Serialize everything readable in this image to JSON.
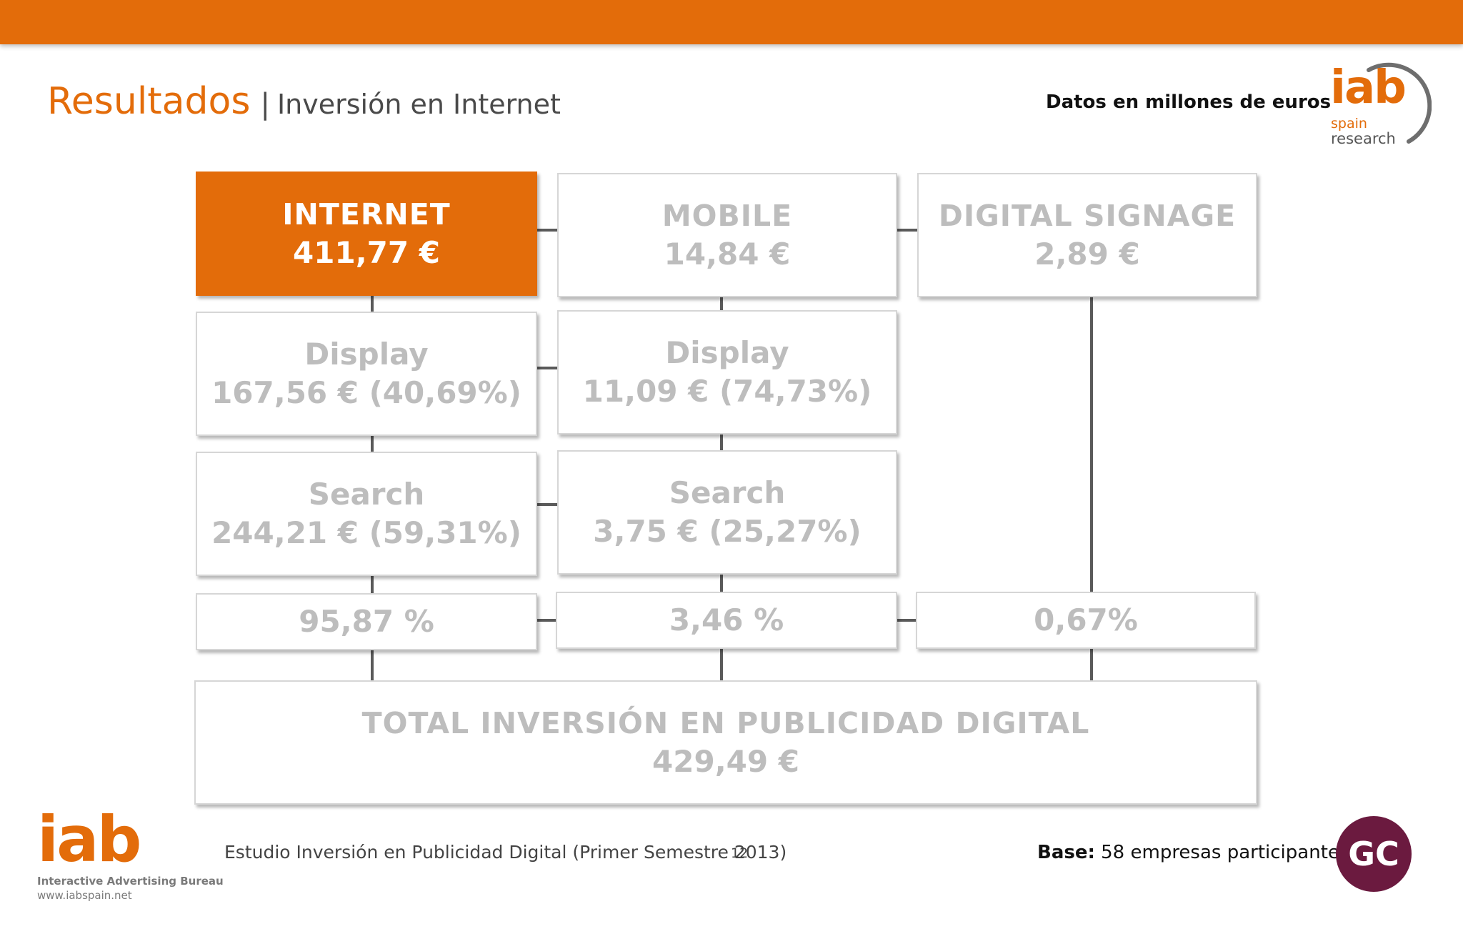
{
  "colors": {
    "accent": "#e36c0a",
    "box_text": "#bdbdbd",
    "connector": "#5a5a5a",
    "gc_circle": "#6b1a3f"
  },
  "header": {
    "title": "Resultados",
    "separator": "|",
    "subtitle": "Inversión en Internet",
    "units": "Datos en millones de euros"
  },
  "logo_top": {
    "brand": "iab",
    "line1": "spain",
    "line2": "research"
  },
  "diagram": {
    "internet": {
      "label": "INTERNET",
      "value": "411,77 €"
    },
    "mobile": {
      "label": "MOBILE",
      "value": "14,84 €"
    },
    "signage": {
      "label": "DIGITAL SIGNAGE",
      "value": "2,89 €"
    },
    "internet_display": {
      "label": "Display",
      "value": "167,56 € (40,69%)"
    },
    "mobile_display": {
      "label": "Display",
      "value": "11,09 € (74,73%)"
    },
    "internet_search": {
      "label": "Search",
      "value": "244,21 € (59,31%)"
    },
    "mobile_search": {
      "label": "Search",
      "value": "3,75 € (25,27%)"
    },
    "share_internet": "95,87 %",
    "share_mobile": "3,46 %",
    "share_signage": "0,67%",
    "total": {
      "label": "TOTAL INVERSIÓN EN PUBLICIDAD DIGITAL",
      "value": "429,49 €"
    }
  },
  "footer": {
    "logo": "iab",
    "logo_tagline": "Interactive Advertising Bureau",
    "logo_url": "www.iabspain.net",
    "study": "Estudio Inversión en Publicidad Digital (Primer Semestre 2013)",
    "page": "12",
    "base_label": "Base:",
    "base_text": "58 empresas participantes",
    "gc_logo": "GC"
  }
}
